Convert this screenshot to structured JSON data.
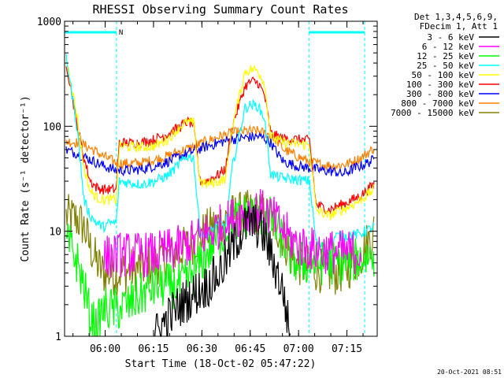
{
  "chart_data": {
    "type": "line",
    "title": "RHESSI Observing Summary Count Rates",
    "xlabel": "Start Time (18-Oct-02 05:47:22)",
    "ylabel": "Count Rate (s⁻¹ detector⁻¹)",
    "yscale": "log",
    "ylim": [
      1,
      1000
    ],
    "xlim_minutes_after_0547": [
      0,
      97
    ],
    "x_ticks": [
      {
        "label": "06:00",
        "t": 12.6
      },
      {
        "label": "06:15",
        "t": 27.6
      },
      {
        "label": "06:30",
        "t": 42.6
      },
      {
        "label": "06:45",
        "t": 57.6
      },
      {
        "label": "07:00",
        "t": 72.6
      },
      {
        "label": "07:15",
        "t": 87.6
      }
    ],
    "y_ticks": [
      {
        "label": "1",
        "v": 1
      },
      {
        "label": "10",
        "v": 10
      },
      {
        "label": "100",
        "v": 100
      },
      {
        "label": "1000",
        "v": 1000
      }
    ],
    "legend_header": [
      "Det 1,3,4,5,6,9,",
      "FDecim 1, Att 1"
    ],
    "night_flag_label": "N",
    "night_intervals": [
      [
        0,
        16.1
      ],
      [
        75.8,
        93.1
      ]
    ],
    "series": [
      {
        "name": "3 - 6 keV",
        "color": "#000000",
        "points": [
          [
            28,
            1
          ],
          [
            32,
            1.5
          ],
          [
            36,
            2
          ],
          [
            40,
            2.5
          ],
          [
            44,
            3
          ],
          [
            48,
            4
          ],
          [
            51,
            6
          ],
          [
            54,
            9
          ],
          [
            56,
            11
          ],
          [
            58,
            12
          ],
          [
            60,
            11
          ],
          [
            62,
            9
          ],
          [
            64,
            6
          ],
          [
            66,
            4
          ],
          [
            68,
            2.5
          ],
          [
            70,
            1
          ]
        ]
      },
      {
        "name": "6 - 12 keV",
        "color": "#ff00ff",
        "points": [
          [
            12,
            5.5
          ],
          [
            16,
            6
          ],
          [
            20,
            6
          ],
          [
            24,
            6
          ],
          [
            28,
            6
          ],
          [
            32,
            6.5
          ],
          [
            36,
            7
          ],
          [
            40,
            8
          ],
          [
            44,
            9.5
          ],
          [
            48,
            11
          ],
          [
            52,
            13
          ],
          [
            56,
            15
          ],
          [
            60,
            16
          ],
          [
            64,
            14
          ],
          [
            66,
            12
          ],
          [
            68,
            10
          ],
          [
            70,
            8.5
          ],
          [
            72,
            7.5
          ],
          [
            76,
            6.8
          ],
          [
            80,
            6.5
          ],
          [
            84,
            6.3
          ],
          [
            88,
            6.3
          ],
          [
            92,
            6.5
          ]
        ]
      },
      {
        "name": "12 - 25 keV",
        "color": "#00ff00",
        "points": [
          [
            0,
            8
          ],
          [
            2,
            7
          ],
          [
            4,
            5
          ],
          [
            6,
            3
          ],
          [
            8,
            1.5
          ],
          [
            10,
            1.2
          ],
          [
            12,
            1.8
          ],
          [
            16,
            1.8
          ],
          [
            20,
            2
          ],
          [
            24,
            2.5
          ],
          [
            28,
            3
          ],
          [
            32,
            3
          ],
          [
            36,
            3
          ],
          [
            40,
            4
          ],
          [
            44,
            6
          ],
          [
            48,
            9
          ],
          [
            52,
            12
          ],
          [
            56,
            14
          ],
          [
            60,
            15
          ],
          [
            64,
            13
          ],
          [
            66,
            10
          ],
          [
            68,
            8
          ],
          [
            70,
            6
          ],
          [
            72,
            5
          ],
          [
            76,
            5
          ],
          [
            80,
            5
          ],
          [
            84,
            5
          ],
          [
            88,
            5.2
          ],
          [
            92,
            5.5
          ],
          [
            96,
            6
          ]
        ]
      },
      {
        "name": "25 - 50 keV",
        "color": "#00ffff",
        "points": [
          [
            0,
            600
          ],
          [
            4,
            90
          ],
          [
            6,
            20
          ],
          [
            8,
            14
          ],
          [
            10,
            12
          ],
          [
            12,
            11
          ],
          [
            14,
            12
          ],
          [
            16,
            12
          ],
          [
            17,
            30
          ],
          [
            20,
            29
          ],
          [
            24,
            28
          ],
          [
            28,
            30
          ],
          [
            32,
            34
          ],
          [
            36,
            45
          ],
          [
            38,
            52
          ],
          [
            40,
            50
          ],
          [
            42,
            10
          ],
          [
            44,
            9
          ],
          [
            48,
            12
          ],
          [
            50,
            11
          ],
          [
            52,
            40
          ],
          [
            56,
            150
          ],
          [
            58,
            160
          ],
          [
            60,
            155
          ],
          [
            62,
            120
          ],
          [
            64,
            35
          ],
          [
            66,
            33
          ],
          [
            68,
            32
          ],
          [
            72,
            31
          ],
          [
            76,
            30
          ],
          [
            78,
            8
          ],
          [
            80,
            7
          ],
          [
            82,
            6
          ],
          [
            84,
            9
          ],
          [
            88,
            9
          ],
          [
            92,
            9.5
          ],
          [
            96,
            11
          ]
        ]
      },
      {
        "name": "50 - 100 keV",
        "color": "#ffff00",
        "points": [
          [
            0,
            550
          ],
          [
            4,
            120
          ],
          [
            6,
            40
          ],
          [
            8,
            24
          ],
          [
            10,
            21
          ],
          [
            12,
            20
          ],
          [
            14,
            20
          ],
          [
            16,
            20
          ],
          [
            17,
            65
          ],
          [
            20,
            64
          ],
          [
            24,
            63
          ],
          [
            28,
            65
          ],
          [
            32,
            75
          ],
          [
            36,
            100
          ],
          [
            38,
            110
          ],
          [
            40,
            108
          ],
          [
            42,
            30
          ],
          [
            44,
            28
          ],
          [
            48,
            30
          ],
          [
            50,
            32
          ],
          [
            52,
            100
          ],
          [
            56,
            330
          ],
          [
            58,
            350
          ],
          [
            60,
            340
          ],
          [
            62,
            260
          ],
          [
            64,
            80
          ],
          [
            66,
            74
          ],
          [
            68,
            70
          ],
          [
            72,
            68
          ],
          [
            76,
            66
          ],
          [
            78,
            16
          ],
          [
            80,
            15
          ],
          [
            82,
            14
          ],
          [
            84,
            15
          ],
          [
            88,
            17
          ],
          [
            92,
            20
          ],
          [
            96,
            25
          ]
        ]
      },
      {
        "name": "100 - 300 keV",
        "color": "#ff0000",
        "points": [
          [
            0,
            500
          ],
          [
            4,
            100
          ],
          [
            6,
            50
          ],
          [
            8,
            30
          ],
          [
            10,
            26
          ],
          [
            12,
            25
          ],
          [
            14,
            25
          ],
          [
            16,
            25
          ],
          [
            17,
            70
          ],
          [
            20,
            69
          ],
          [
            24,
            70
          ],
          [
            28,
            75
          ],
          [
            32,
            85
          ],
          [
            36,
            100
          ],
          [
            38,
            110
          ],
          [
            40,
            105
          ],
          [
            42,
            30
          ],
          [
            44,
            30
          ],
          [
            48,
            35
          ],
          [
            50,
            40
          ],
          [
            52,
            100
          ],
          [
            56,
            240
          ],
          [
            58,
            270
          ],
          [
            60,
            260
          ],
          [
            62,
            200
          ],
          [
            64,
            85
          ],
          [
            66,
            80
          ],
          [
            68,
            76
          ],
          [
            72,
            75
          ],
          [
            76,
            73
          ],
          [
            78,
            18
          ],
          [
            80,
            17
          ],
          [
            82,
            16
          ],
          [
            84,
            17
          ],
          [
            88,
            19
          ],
          [
            92,
            22
          ],
          [
            96,
            28
          ]
        ]
      },
      {
        "name": "300 - 800 keV",
        "color": "#0000ff",
        "points": [
          [
            0,
            60
          ],
          [
            4,
            55
          ],
          [
            8,
            48
          ],
          [
            12,
            42
          ],
          [
            16,
            38
          ],
          [
            20,
            38
          ],
          [
            24,
            39
          ],
          [
            28,
            42
          ],
          [
            32,
            46
          ],
          [
            36,
            52
          ],
          [
            40,
            58
          ],
          [
            44,
            64
          ],
          [
            48,
            70
          ],
          [
            52,
            75
          ],
          [
            56,
            78
          ],
          [
            60,
            80
          ],
          [
            62,
            77
          ],
          [
            64,
            70
          ],
          [
            66,
            55
          ],
          [
            68,
            46
          ],
          [
            72,
            42
          ],
          [
            76,
            40
          ],
          [
            80,
            38
          ],
          [
            84,
            37
          ],
          [
            86,
            35
          ],
          [
            88,
            37
          ],
          [
            90,
            40
          ],
          [
            92,
            42
          ],
          [
            96,
            48
          ]
        ]
      },
      {
        "name": "800 - 7000 keV",
        "color": "#ff8000",
        "points": [
          [
            0,
            72
          ],
          [
            4,
            70
          ],
          [
            8,
            62
          ],
          [
            12,
            52
          ],
          [
            16,
            45
          ],
          [
            20,
            44
          ],
          [
            24,
            45
          ],
          [
            28,
            48
          ],
          [
            32,
            52
          ],
          [
            36,
            58
          ],
          [
            40,
            64
          ],
          [
            44,
            72
          ],
          [
            48,
            80
          ],
          [
            52,
            86
          ],
          [
            56,
            90
          ],
          [
            60,
            90
          ],
          [
            64,
            82
          ],
          [
            66,
            72
          ],
          [
            68,
            60
          ],
          [
            72,
            52
          ],
          [
            76,
            46
          ],
          [
            80,
            43
          ],
          [
            84,
            42
          ],
          [
            88,
            44
          ],
          [
            90,
            47
          ],
          [
            92,
            50
          ],
          [
            96,
            62
          ]
        ]
      },
      {
        "name": "7000 - 15000 keV",
        "color": "#808000",
        "points": [
          [
            0,
            14
          ],
          [
            4,
            13
          ],
          [
            6,
            11
          ],
          [
            8,
            7
          ],
          [
            10,
            5
          ],
          [
            12,
            4
          ],
          [
            16,
            4
          ],
          [
            20,
            4.2
          ],
          [
            24,
            4.5
          ],
          [
            28,
            5
          ],
          [
            32,
            5.5
          ],
          [
            36,
            6.5
          ],
          [
            40,
            8
          ],
          [
            44,
            10
          ],
          [
            48,
            12
          ],
          [
            52,
            14
          ],
          [
            56,
            15
          ],
          [
            60,
            15
          ],
          [
            64,
            13
          ],
          [
            66,
            11
          ],
          [
            68,
            8.5
          ],
          [
            70,
            6
          ],
          [
            72,
            5
          ],
          [
            76,
            4.5
          ],
          [
            80,
            4.2
          ],
          [
            84,
            4
          ],
          [
            88,
            4.5
          ],
          [
            92,
            6
          ],
          [
            96,
            10
          ]
        ]
      }
    ]
  },
  "footer": {
    "timestamp": "20-Oct-2021 08:51"
  }
}
